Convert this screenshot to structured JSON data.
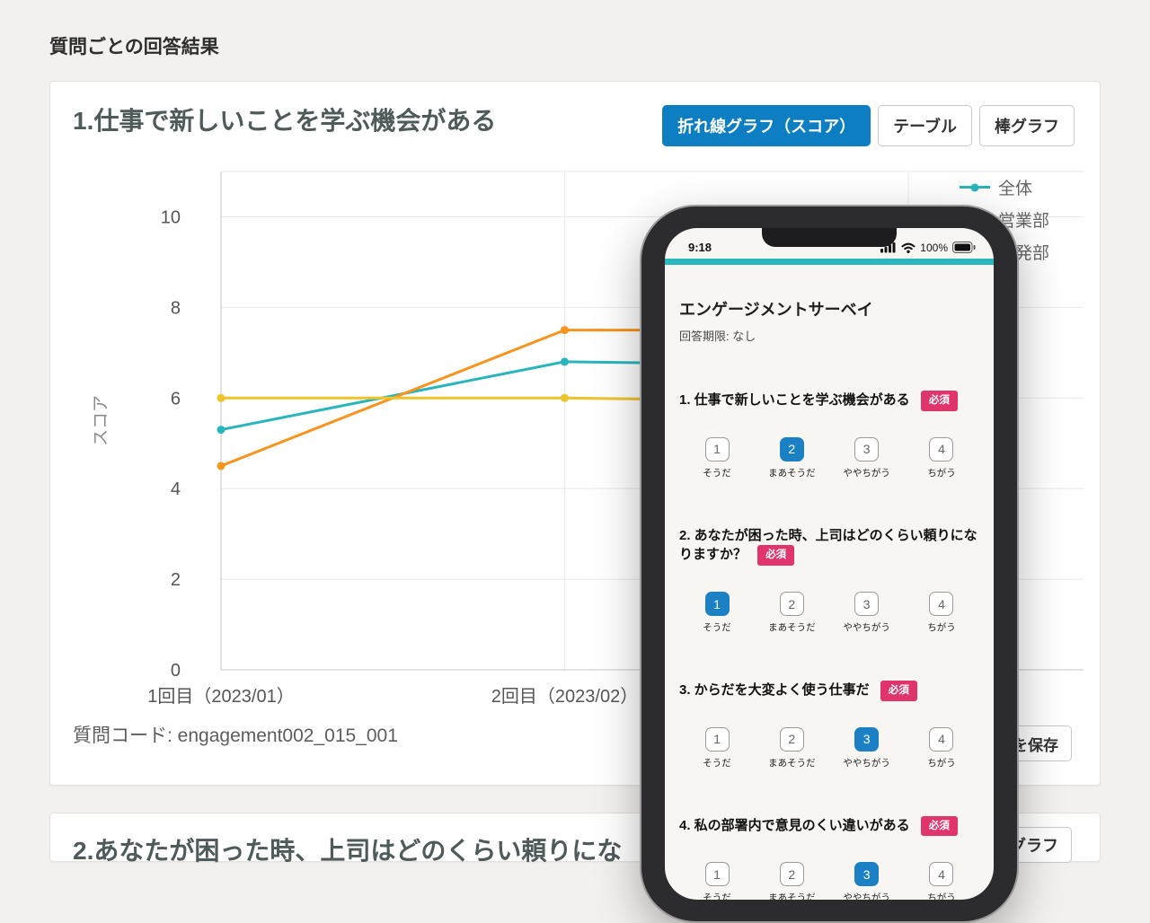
{
  "page": {
    "title": "質問ごとの回答結果"
  },
  "colors": {
    "accent_blue": "#0e7ec2",
    "teal": "#2ab7bd",
    "badge_pink": "#e0346d"
  },
  "card1": {
    "question_title": "1.仕事で新しいことを学ぶ機会がある",
    "tabs": [
      {
        "label": "折れ線グラフ（スコア）",
        "active": true
      },
      {
        "label": "テーブル",
        "active": false
      },
      {
        "label": "棒グラフ",
        "active": false
      }
    ],
    "question_code": "質問コード: engagement002_015_001",
    "save_button_visible_label": "を保存"
  },
  "chart_data": {
    "type": "line",
    "title": "",
    "xlabel": "",
    "ylabel": "スコア",
    "ylim": [
      0,
      11
    ],
    "yticks": [
      0,
      2,
      4,
      6,
      8,
      10
    ],
    "categories": [
      "1回目（2023/01）",
      "2回目（2023/02）",
      ""
    ],
    "series": [
      {
        "name": "全体",
        "color": "#29b5bc",
        "values": [
          5.3,
          6.8,
          6.7
        ]
      },
      {
        "name": "営業部",
        "color": "#f7941e",
        "values": [
          4.5,
          7.5,
          7.5
        ]
      },
      {
        "name": "開発部",
        "color": "#efc32a",
        "values": [
          6.0,
          6.0,
          5.9
        ]
      }
    ],
    "grid": true,
    "legend_position": "top-right"
  },
  "card2": {
    "question_title": "2.あなたが困った時、上司はどのくらい頼りにな",
    "tab_visible_label": "グラフ"
  },
  "phone": {
    "status_bar": {
      "time": "9:18",
      "battery": "100%"
    },
    "survey": {
      "title": "エンゲージメントサーベイ",
      "deadline": "回答期限: なし",
      "required_badge": "必須",
      "scale_values": [
        "1",
        "2",
        "3",
        "4"
      ],
      "scale_labels": [
        "そうだ",
        "まあそうだ",
        "ややちがう",
        "ちがう"
      ],
      "questions": [
        {
          "text": "1. 仕事で新しいことを学ぶ機会がある",
          "selected": 2
        },
        {
          "text": "2. あなたが困った時、上司はどのくらい頼りになりますか？",
          "selected": 1
        },
        {
          "text": "3. からだを大変よく使う仕事だ",
          "selected": 3
        },
        {
          "text": "4. 私の部署内で意見のくい違いがある",
          "selected": 3
        }
      ]
    }
  }
}
